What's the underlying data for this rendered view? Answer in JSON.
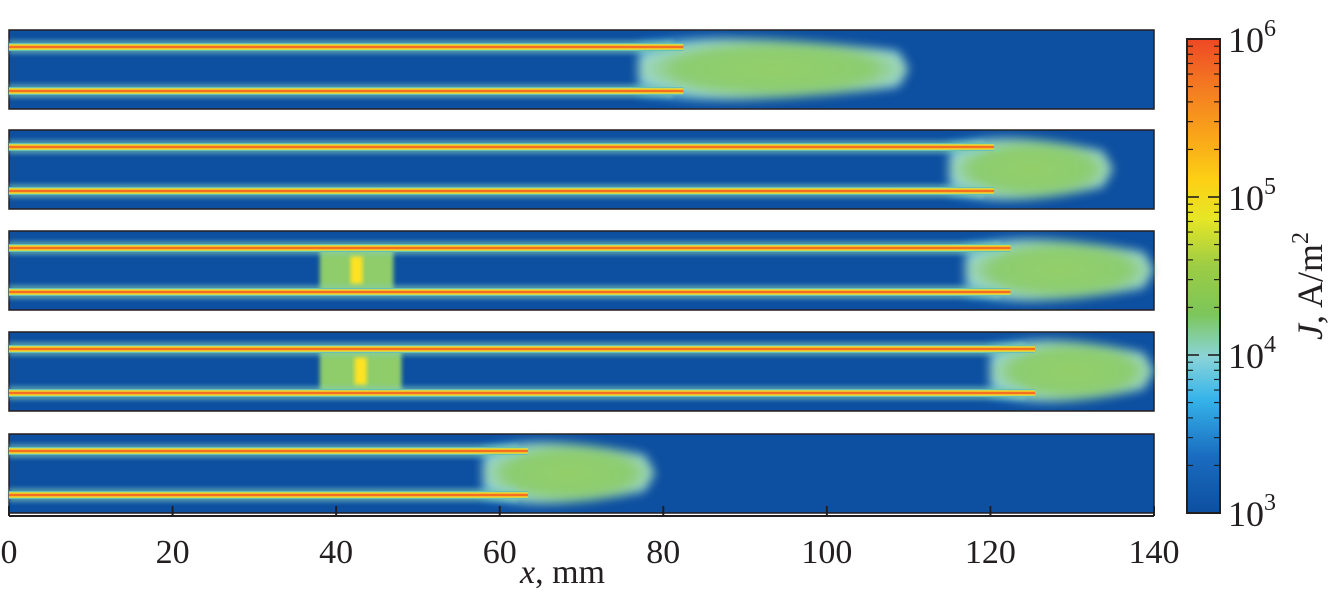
{
  "chart_data": {
    "type": "heatmap",
    "description_free": true,
    "xlabel_var": "x",
    "xlabel_unit": ", mm",
    "xlim": [
      0,
      140
    ],
    "x_ticks": [
      "0",
      "20",
      "40",
      "60",
      "80",
      "100",
      "120",
      "140"
    ],
    "x_tick_values": [
      0,
      20,
      40,
      60,
      80,
      100,
      120,
      140
    ],
    "colorbar": {
      "label_var": "J",
      "label_unit": ", A/m",
      "label_exp": "2",
      "scale": "log",
      "range": [
        1000,
        1000000
      ],
      "ticks": [
        {
          "base": "10",
          "exp": "6",
          "value": 1000000
        },
        {
          "base": "10",
          "exp": "5",
          "value": 100000
        },
        {
          "base": "10",
          "exp": "4",
          "value": 10000
        },
        {
          "base": "10",
          "exp": "3",
          "value": 1000
        }
      ],
      "colors": [
        "#0d4fa0",
        "#1a72c2",
        "#35b4ea",
        "#7fd0d8",
        "#8fcc6a",
        "#5fb946",
        "#c8e23a",
        "#ffe320",
        "#fbb714",
        "#f47a22",
        "#ee4824"
      ]
    },
    "panels": [
      {
        "channels_join_x": 80,
        "front_x": 110
      },
      {
        "channels_join_x": 118,
        "front_x": 135
      },
      {
        "bridge_x": [
          38,
          47
        ],
        "channels_join_x": 120,
        "front_x": 140
      },
      {
        "bridge_x": [
          38,
          48
        ],
        "channels_join_x": 123,
        "front_x": 140
      },
      {
        "channels_join_x": 61,
        "front_x": 79
      }
    ]
  }
}
